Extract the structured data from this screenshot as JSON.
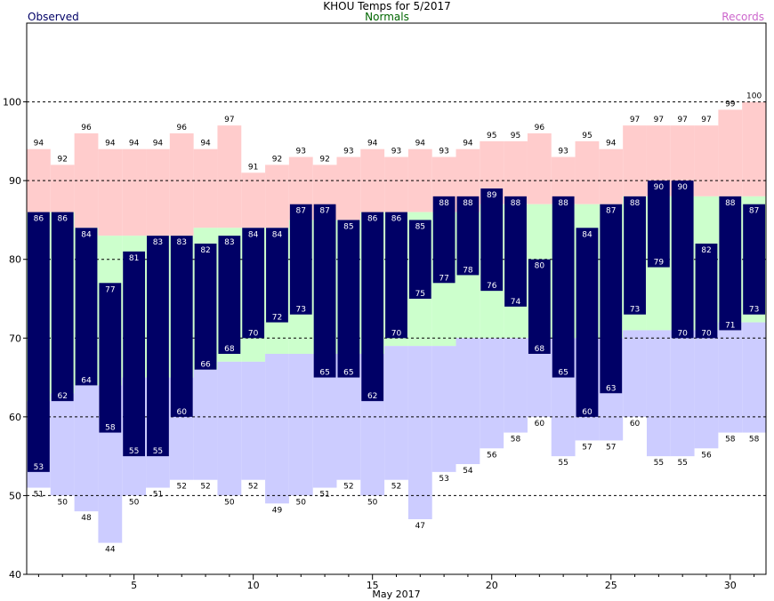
{
  "chart_data": {
    "type": "bar",
    "title": "KHOU Temps for  5/2017",
    "xlabel": "May 2017",
    "ylabel": "",
    "xlim": [
      0.5,
      31.5
    ],
    "ylim": [
      40,
      110
    ],
    "xticks": [
      5,
      10,
      15,
      20,
      25,
      30
    ],
    "yticks": [
      40,
      50,
      60,
      70,
      80,
      90,
      100
    ],
    "grid_lines": [
      50,
      60,
      70,
      80,
      90,
      100
    ],
    "days": [
      1,
      2,
      3,
      4,
      5,
      6,
      7,
      8,
      9,
      10,
      11,
      12,
      13,
      14,
      15,
      16,
      17,
      18,
      19,
      20,
      21,
      22,
      23,
      24,
      25,
      26,
      27,
      28,
      29,
      30,
      31
    ],
    "series": [
      {
        "name": "Observed",
        "color": "#000066",
        "role": "observed",
        "high": [
          86,
          86,
          84,
          77,
          81,
          83,
          83,
          82,
          83,
          84,
          84,
          87,
          87,
          85,
          86,
          86,
          85,
          88,
          88,
          89,
          88,
          80,
          88,
          84,
          87,
          88,
          90,
          90,
          82,
          88,
          87
        ],
        "low": [
          53,
          62,
          64,
          58,
          55,
          55,
          60,
          66,
          68,
          70,
          72,
          73,
          65,
          65,
          62,
          70,
          75,
          77,
          78,
          76,
          74,
          68,
          65,
          60,
          63,
          73,
          79,
          70,
          70,
          71,
          73
        ]
      },
      {
        "name": "Normals",
        "color": "#006600",
        "role": "normals",
        "high": [
          86,
          86,
          84,
          83,
          83,
          83,
          83,
          84,
          84,
          84,
          84,
          85,
          85,
          85,
          86,
          86,
          86,
          86,
          86,
          87,
          87,
          87,
          87,
          87,
          87,
          88,
          88,
          88,
          88,
          88,
          88
        ],
        "low": [
          62,
          63,
          64,
          64,
          65,
          65,
          65,
          66,
          67,
          67,
          68,
          68,
          68,
          68,
          68,
          69,
          69,
          69,
          70,
          70,
          70,
          70,
          70,
          70,
          70,
          71,
          71,
          71,
          71,
          72,
          72
        ]
      },
      {
        "name": "Records",
        "color": "#cc66cc",
        "role": "records",
        "high": [
          94,
          92,
          96,
          94,
          94,
          94,
          96,
          94,
          97,
          91,
          92,
          93,
          92,
          93,
          94,
          93,
          94,
          93,
          94,
          95,
          95,
          96,
          93,
          95,
          94,
          97,
          97,
          97,
          97,
          99,
          100
        ],
        "low": [
          51,
          50,
          48,
          44,
          50,
          51,
          52,
          52,
          50,
          52,
          49,
          50,
          51,
          52,
          50,
          52,
          47,
          53,
          54,
          56,
          58,
          60,
          55,
          57,
          57,
          60,
          55,
          55,
          56,
          58,
          58
        ]
      }
    ],
    "colors": {
      "record_fill": "#ffcccc",
      "normal_fill": "#ccffcc",
      "record_low_fill": "#ccccff",
      "observed_bar": "#000066",
      "observed_text": "#ffffff",
      "legend_observed": "#000066",
      "legend_normals": "#006600",
      "legend_records": "#cc66cc"
    }
  }
}
